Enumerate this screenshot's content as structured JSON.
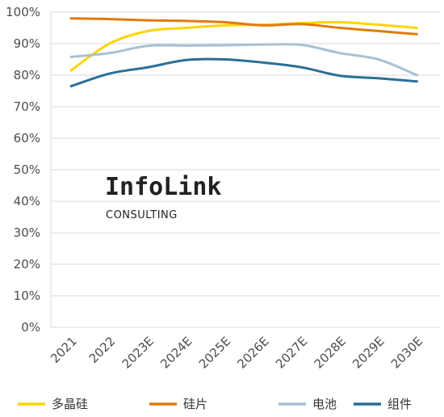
{
  "chart_data": {
    "type": "line",
    "categories": [
      "2021",
      "2022",
      "2023E",
      "2024E",
      "2025E",
      "2026E",
      "2027E",
      "2028E",
      "2029E",
      "2030E"
    ],
    "ylim": [
      0,
      100
    ],
    "yticks": [
      0,
      10,
      20,
      30,
      40,
      50,
      60,
      70,
      80,
      90,
      100
    ],
    "ytick_suffix": "%",
    "grid": true,
    "legend_position": "bottom",
    "series": [
      {
        "name": "多晶硅",
        "color": "#ffd400",
        "values": [
          81.5,
          90,
          94,
          95,
          95.8,
          96,
          96.5,
          96.8,
          96,
          95
        ]
      },
      {
        "name": "硅片",
        "color": "#e07b0e",
        "values": [
          98,
          97.8,
          97.4,
          97.2,
          96.8,
          95.8,
          96.2,
          95,
          94,
          93
        ]
      },
      {
        "name": "电池",
        "color": "#a9c1d2",
        "values": [
          85.8,
          87,
          89.3,
          89.4,
          89.5,
          89.7,
          89.6,
          87,
          85,
          80
        ]
      },
      {
        "name": "组件",
        "color": "#2a6f97",
        "values": [
          76.5,
          80.5,
          82.5,
          84.8,
          85,
          84,
          82.5,
          79.8,
          79,
          78
        ]
      }
    ]
  },
  "watermark": {
    "title": "InfoLink",
    "subtitle": "CONSULTING"
  }
}
